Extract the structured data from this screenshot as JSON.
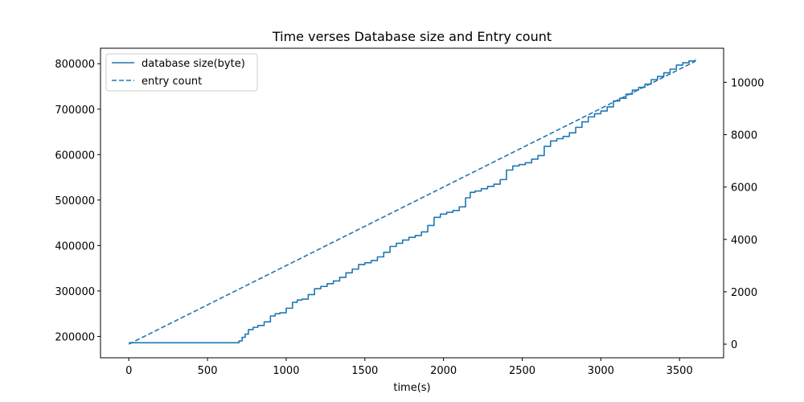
{
  "chart_data": {
    "type": "line",
    "title": "Time verses Database size and Entry count",
    "xlabel": "time(s)",
    "ylabel_left": "",
    "ylabel_right": "",
    "xlim": [
      -180,
      3780
    ],
    "ylim_left": [
      153000,
      834000
    ],
    "ylim_right": [
      -520,
      11300
    ],
    "x_ticks": [
      0,
      500,
      1000,
      1500,
      2000,
      2500,
      3000,
      3500
    ],
    "y_left_ticks": [
      200000,
      300000,
      400000,
      500000,
      600000,
      700000,
      800000
    ],
    "y_right_ticks": [
      0,
      2000,
      4000,
      6000,
      8000,
      10000
    ],
    "grid": false,
    "legend_position": "upper-left",
    "color": "#1f77b4",
    "series": [
      {
        "name": "database size(byte)",
        "axis": "left",
        "style": "solid",
        "x": [
          0,
          680,
          700,
          720,
          740,
          760,
          790,
          820,
          860,
          900,
          930,
          960,
          1000,
          1040,
          1070,
          1100,
          1140,
          1180,
          1220,
          1260,
          1300,
          1340,
          1380,
          1420,
          1460,
          1500,
          1540,
          1580,
          1620,
          1660,
          1700,
          1740,
          1780,
          1820,
          1860,
          1900,
          1940,
          1980,
          2020,
          2060,
          2100,
          2140,
          2170,
          2200,
          2240,
          2280,
          2320,
          2360,
          2400,
          2440,
          2480,
          2520,
          2560,
          2600,
          2640,
          2680,
          2720,
          2760,
          2800,
          2840,
          2880,
          2920,
          2960,
          3000,
          3040,
          3080,
          3120,
          3160,
          3200,
          3240,
          3280,
          3320,
          3360,
          3400,
          3440,
          3480,
          3520,
          3560,
          3600
        ],
        "values": [
          186000,
          186000,
          190000,
          198000,
          205000,
          215000,
          220000,
          224000,
          232000,
          245000,
          250000,
          252000,
          262000,
          275000,
          280000,
          282000,
          292000,
          305000,
          310000,
          316000,
          322000,
          330000,
          340000,
          348000,
          358000,
          362000,
          367000,
          375000,
          385000,
          398000,
          405000,
          412000,
          418000,
          422000,
          430000,
          444000,
          462000,
          469000,
          473000,
          477000,
          485000,
          505000,
          517000,
          520000,
          525000,
          530000,
          535000,
          545000,
          566000,
          575000,
          578000,
          582000,
          590000,
          598000,
          618000,
          630000,
          635000,
          640000,
          648000,
          660000,
          672000,
          683000,
          690000,
          696000,
          705000,
          718000,
          724000,
          733000,
          742000,
          748000,
          755000,
          765000,
          772000,
          780000,
          788000,
          797000,
          802000,
          806000,
          809000
        ]
      },
      {
        "name": "entry count",
        "axis": "right",
        "style": "dashed",
        "x": [
          0,
          3600
        ],
        "values": [
          0,
          10800
        ]
      }
    ]
  }
}
